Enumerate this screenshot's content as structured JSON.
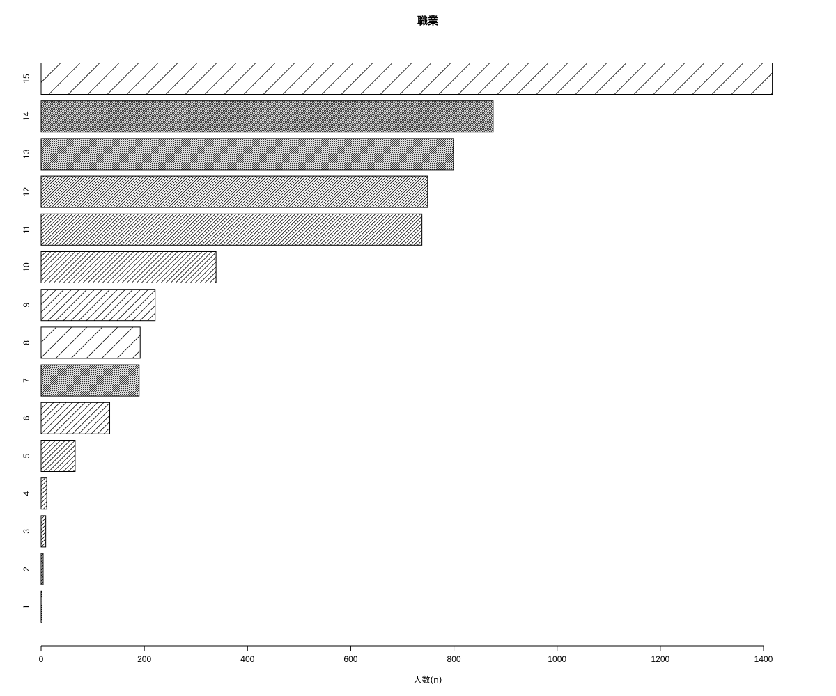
{
  "chart_data": {
    "type": "bar",
    "orientation": "horizontal",
    "title": "職業",
    "xlabel": "人数(n)",
    "ylabel": "",
    "xlim": [
      0,
      1400
    ],
    "x_ticks": [
      0,
      200,
      400,
      600,
      800,
      1000,
      1200,
      1400
    ],
    "grid": false,
    "categories": [
      "1",
      "2",
      "3",
      "4",
      "5",
      "6",
      "7",
      "8",
      "9",
      "10",
      "11",
      "12",
      "13",
      "14",
      "15"
    ],
    "values": [
      2,
      4,
      9,
      11,
      66,
      133,
      190,
      192,
      221,
      339,
      738,
      749,
      799,
      876,
      1417
    ]
  }
}
